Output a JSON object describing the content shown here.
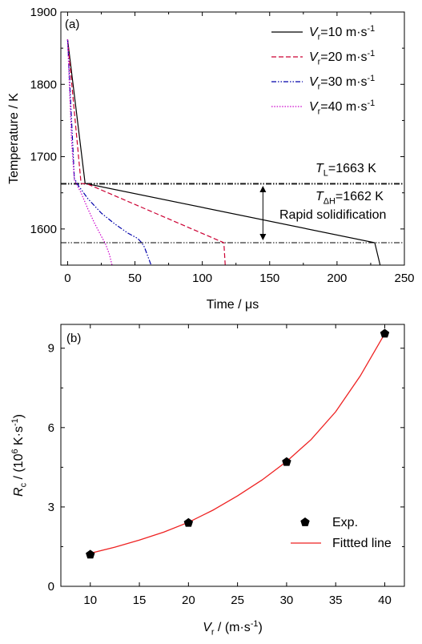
{
  "chart_data": [
    {
      "type": "line",
      "panel_label": "(a)",
      "xlabel_parts": [
        "Time / ",
        "μs"
      ],
      "ylabel": "Temperature / K",
      "xlim": [
        -5,
        250
      ],
      "ylim": [
        1550,
        1900
      ],
      "xticks": [
        0,
        50,
        100,
        150,
        200,
        250
      ],
      "yticks": [
        1600,
        1700,
        1800,
        1900
      ],
      "grid": false,
      "legend_position": "top-right",
      "series": [
        {
          "legend": {
            "sym": "V",
            "sub": "r",
            "text": "=10 m·s",
            "sup": "-1"
          },
          "color": "#000000",
          "dash": "",
          "x": [
            0,
            13,
            228,
            232
          ],
          "y": [
            1862,
            1663,
            1581,
            1550
          ]
        },
        {
          "legend": {
            "sym": "V",
            "sub": "r",
            "text": "=20 m·s",
            "sup": "-1"
          },
          "color": "#cc0033",
          "dash": "6,3",
          "x": [
            0,
            10,
            15,
            116,
            117
          ],
          "y": [
            1862,
            1663,
            1662,
            1581,
            1550
          ]
        },
        {
          "legend": {
            "sym": "V",
            "sub": "r",
            "text": "=30 m·s",
            "sup": "-1"
          },
          "color": "#0000aa",
          "dash": "6,2,1.5,2,1.5,2",
          "x": [
            0,
            4,
            5,
            8,
            15,
            25,
            35,
            45,
            52,
            55,
            57,
            62
          ],
          "y": [
            1862,
            1710,
            1670,
            1660,
            1642,
            1622,
            1607,
            1594,
            1587,
            1581,
            1575,
            1550
          ]
        },
        {
          "legend": {
            "sym": "V",
            "sub": "r",
            "text": "=40 m·s",
            "sup": "-1"
          },
          "color": "#cc00cc",
          "dash": "1.5,1.8",
          "x": [
            0,
            3,
            5,
            10,
            15,
            20,
            25,
            28,
            31,
            33
          ],
          "y": [
            1862,
            1720,
            1668,
            1650,
            1628,
            1608,
            1590,
            1580,
            1565,
            1550
          ]
        }
      ],
      "reference_lines": [
        {
          "y": 1663,
          "label": {
            "sym": "T",
            "sub": "L",
            "text": "=1663 K"
          }
        },
        {
          "y": 1662,
          "label": {
            "sym": "T",
            "sub": "ΔH",
            "text": "=1662 K"
          }
        },
        {
          "y": 1581
        }
      ],
      "annotation": {
        "text": "Rapid solidification",
        "x": 145,
        "y_range": [
          1663,
          1581
        ]
      }
    },
    {
      "type": "scatter",
      "panel_label": "(b)",
      "xlabel": {
        "sym": "V",
        "sub": "r",
        "text": " / (m·s",
        "sup": "-1",
        "tail": ")"
      },
      "ylabel": {
        "sym": "R",
        "sub": "c",
        "text": " / (10",
        "sup6": "6",
        "mid": " K·s",
        "sup": "-1",
        "tail": ")"
      },
      "xlim": [
        7,
        42
      ],
      "ylim": [
        0,
        9.9
      ],
      "xticks": [
        10,
        15,
        20,
        25,
        30,
        35,
        40
      ],
      "yticks": [
        0,
        3,
        6,
        9
      ],
      "grid": false,
      "legend_position": "bottom-right",
      "series": [
        {
          "name": "Exp.",
          "marker": "pentagon",
          "color": "#000000",
          "x": [
            10,
            20,
            30,
            40
          ],
          "y": [
            1.2,
            2.4,
            4.7,
            9.55
          ]
        },
        {
          "name": "Fittted line",
          "color": "#ee2222",
          "x": [
            10,
            12.5,
            15,
            17.5,
            20,
            22.5,
            25,
            27.5,
            30,
            32.5,
            35,
            37.5,
            40
          ],
          "y": [
            1.25,
            1.48,
            1.75,
            2.05,
            2.42,
            2.88,
            3.42,
            4.02,
            4.72,
            5.55,
            6.6,
            7.95,
            9.55
          ]
        }
      ]
    }
  ]
}
